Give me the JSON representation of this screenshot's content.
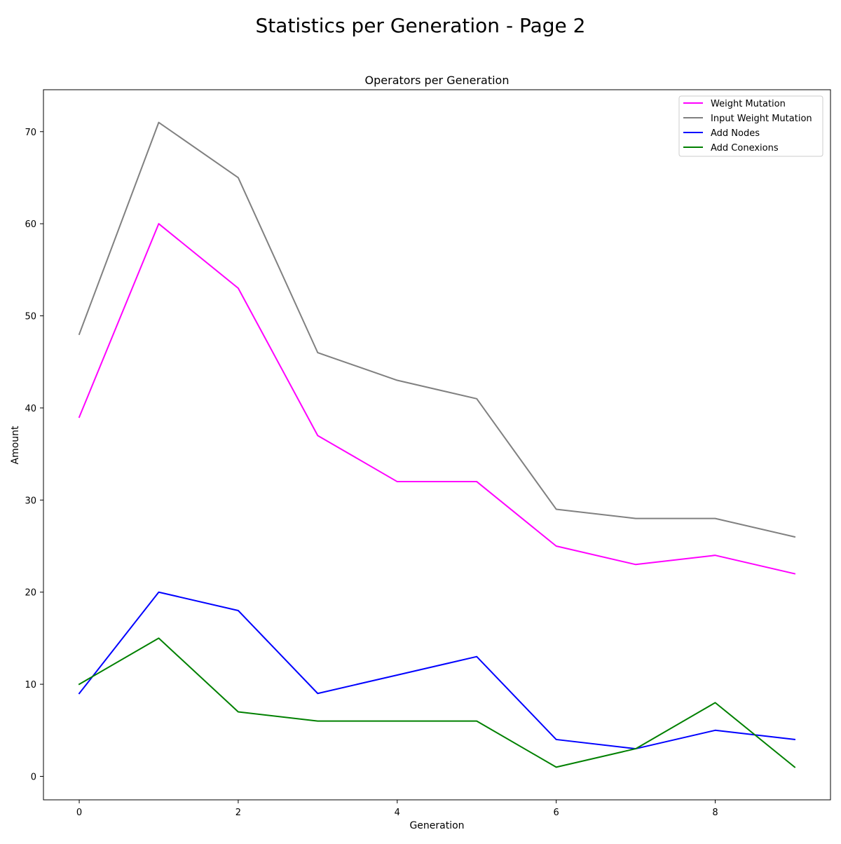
{
  "figure": {
    "title": "Statistics per Generation - Page 2"
  },
  "chart_data": {
    "type": "line",
    "title": "Operators per Generation",
    "xlabel": "Generation",
    "ylabel": "Amount",
    "x": [
      0,
      1,
      2,
      3,
      4,
      5,
      6,
      7,
      8,
      9
    ],
    "xlim": [
      -0.45,
      9.45
    ],
    "ylim": [
      -2.55,
      74.55
    ],
    "xticks": [
      0,
      2,
      4,
      6,
      8
    ],
    "yticks": [
      0,
      10,
      20,
      30,
      40,
      50,
      60,
      70
    ],
    "grid": false,
    "legend_position": "top-right",
    "series": [
      {
        "name": "Weight Mutation",
        "color": "#ff00ff",
        "values": [
          39,
          60,
          53,
          37,
          32,
          32,
          25,
          23,
          24,
          22
        ]
      },
      {
        "name": "Input Weight Mutation",
        "color": "#808080",
        "values": [
          48,
          71,
          65,
          46,
          43,
          41,
          29,
          28,
          28,
          26
        ]
      },
      {
        "name": "Add Nodes",
        "color": "#0000ff",
        "values": [
          9,
          20,
          18,
          9,
          11,
          13,
          4,
          3,
          5,
          4
        ]
      },
      {
        "name": "Add Conexions",
        "color": "#008000",
        "values": [
          10,
          15,
          7,
          6,
          6,
          6,
          1,
          3,
          8,
          1
        ]
      }
    ]
  }
}
